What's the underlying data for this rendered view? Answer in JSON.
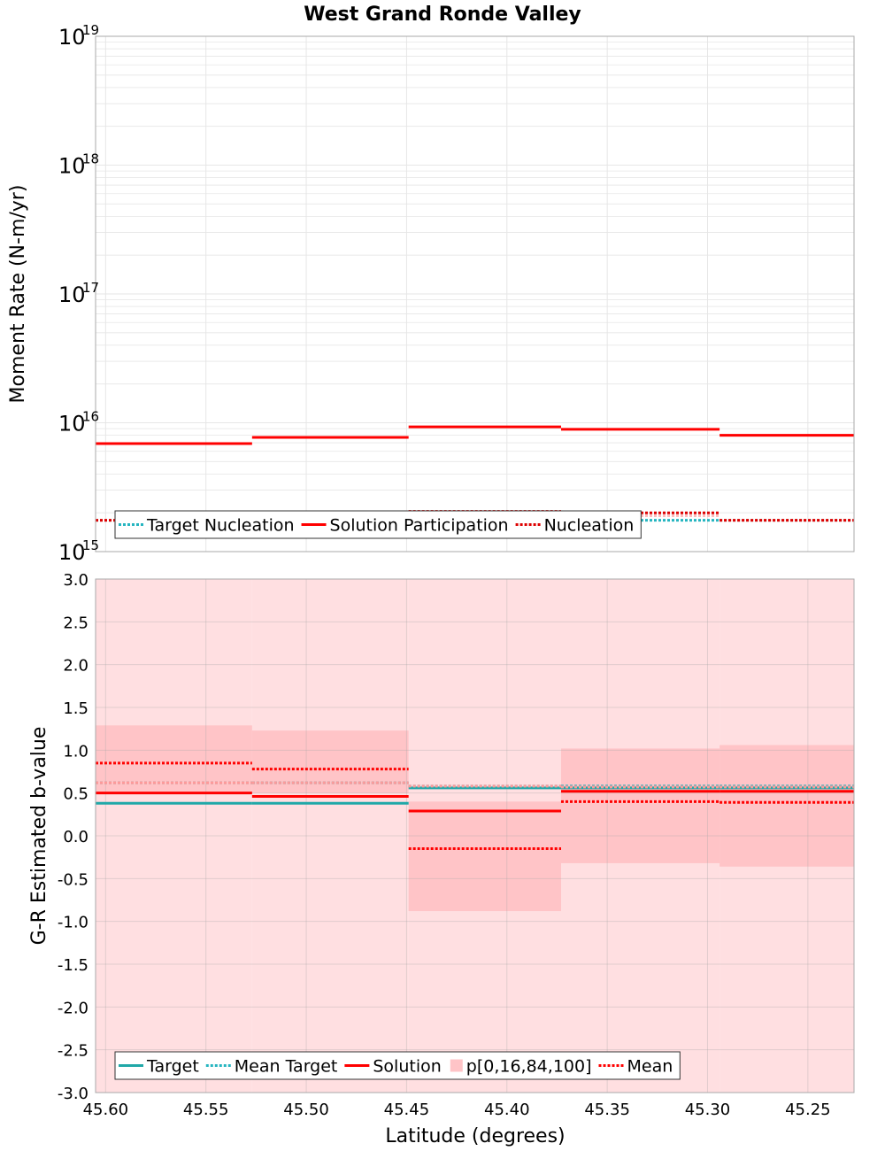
{
  "title": "West Grand Ronde Valley",
  "xlabel": "Latitude (degrees)",
  "colors": {
    "teal": "#20a8a8",
    "teal_dotted": "#26b5c0",
    "red": "#ff0000",
    "band_outer": "#ffdfe1",
    "band_inner": "#ffc4c7",
    "grid": "#e6e6e6",
    "frame": "#aaaaaa"
  },
  "chart_data": [
    {
      "type": "line",
      "subtype": "step",
      "ylabel": "Moment Rate (N-m/yr)",
      "yscale": "log",
      "ylim": [
        1000000000000000.0,
        1e+19
      ],
      "xlim": [
        45.605,
        45.227
      ],
      "x_edges": [
        45.605,
        45.527,
        45.449,
        45.373,
        45.294,
        45.227
      ],
      "ytick_base": "10",
      "yticks": [
        {
          "value": 1000000000000000.0,
          "exp": "15"
        },
        {
          "value": 1e+16,
          "exp": "16"
        },
        {
          "value": 1e+17,
          "exp": "17"
        },
        {
          "value": 1e+18,
          "exp": "18"
        },
        {
          "value": 1e+19,
          "exp": "19"
        }
      ],
      "series": [
        {
          "name": "Target Nucleation",
          "style": "dotted",
          "color": "#26b5c0",
          "values": [
            1750000000000000.0,
            1850000000000000.0,
            1900000000000000.0,
            1750000000000000.0,
            1750000000000000.0
          ]
        },
        {
          "style": "dotted",
          "color": "#ffbcbc",
          "values": [
            1750000000000000.0,
            2000000000000000.0,
            2050000000000000.0,
            1900000000000000.0,
            1750000000000000.0
          ]
        },
        {
          "name": "Solution Participation",
          "style": "solid",
          "color": "#ff0000",
          "values": [
            6900000000000000.0,
            7700000000000000.0,
            9300000000000000.0,
            8900000000000000.0,
            8000000000000000.0
          ]
        },
        {
          "name": "Nucleation",
          "style": "dotted",
          "color": "#dd0000",
          "values": [
            1750000000000000.0,
            1950000000000000.0,
            2050000000000000.0,
            2000000000000000.0,
            1750000000000000.0
          ]
        }
      ],
      "legend": {
        "position": "lower-left",
        "items": [
          {
            "label": "Target Nucleation",
            "style": "dotted",
            "color": "#26b5c0"
          },
          {
            "label": "Solution Participation",
            "style": "solid",
            "color": "#ff0000"
          },
          {
            "label": "Nucleation",
            "style": "dotted",
            "color": "#dd0000"
          }
        ]
      },
      "grid": true
    },
    {
      "type": "line",
      "subtype": "step",
      "ylabel": "G-R Estimated b-value",
      "ylim": [
        -3.0,
        3.0
      ],
      "xlim": [
        45.605,
        45.227
      ],
      "x_edges": [
        45.605,
        45.527,
        45.449,
        45.373,
        45.294,
        45.227
      ],
      "yticks": [
        "3.0",
        "2.5",
        "2.0",
        "1.5",
        "1.0",
        "0.5",
        "0.0",
        "-0.5",
        "-1.0",
        "-1.5",
        "-2.0",
        "-2.5",
        "-3.0"
      ],
      "xticks": [
        "45.60",
        "45.55",
        "45.50",
        "45.45",
        "45.40",
        "45.35",
        "45.30",
        "45.25"
      ],
      "bands": {
        "name": "p[0,16,84,100]",
        "outer": {
          "low": [
            -3.0,
            -3.0,
            -3.0,
            -3.0,
            -3.0
          ],
          "high": [
            3.0,
            3.0,
            3.0,
            3.0,
            3.0
          ]
        },
        "inner": {
          "low": [
            0.5,
            0.5,
            -0.88,
            -0.32,
            -0.36
          ],
          "high": [
            1.29,
            1.23,
            0.4,
            1.02,
            1.06
          ]
        }
      },
      "series": [
        {
          "name": "Target",
          "style": "solid",
          "color": "#20a8a8",
          "values": [
            0.38,
            0.38,
            0.56,
            0.56,
            0.56
          ]
        },
        {
          "name": "Mean Target",
          "style": "dotted",
          "color": "#26b5c0",
          "values": [
            0.62,
            0.62,
            0.58,
            0.58,
            0.58
          ]
        },
        {
          "style": "dotted",
          "color": "#ff9999",
          "values": [
            0.62,
            0.62,
            0.58,
            0.57,
            0.57
          ]
        },
        {
          "name": "Solution",
          "style": "solid",
          "color": "#ff0000",
          "values": [
            0.5,
            0.46,
            0.29,
            0.52,
            0.52
          ]
        },
        {
          "name": "Mean",
          "style": "dotted",
          "color": "#ff0000",
          "values": [
            0.85,
            0.78,
            -0.15,
            0.4,
            0.39
          ]
        }
      ],
      "legend": {
        "position": "lower-left",
        "items": [
          {
            "label": "Target",
            "style": "solid",
            "color": "#20a8a8"
          },
          {
            "label": "Mean Target",
            "style": "dotted",
            "color": "#26b5c0"
          },
          {
            "label": "Solution",
            "style": "solid",
            "color": "#ff0000"
          },
          {
            "label": "p[0,16,84,100]",
            "style": "box",
            "color": "#ffc4c7"
          },
          {
            "label": "Mean",
            "style": "dotted",
            "color": "#ff0000"
          }
        ]
      },
      "grid": true
    }
  ]
}
